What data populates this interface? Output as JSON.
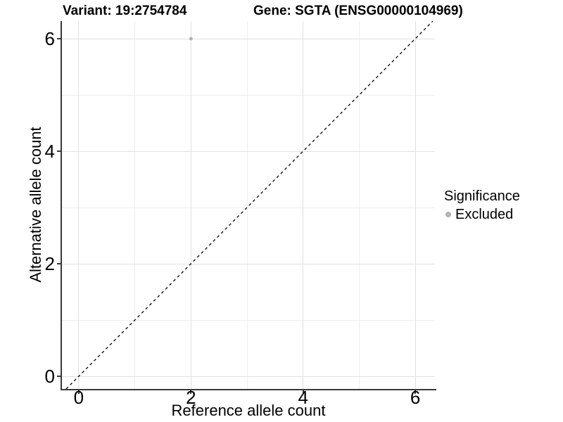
{
  "chart_data": {
    "type": "scatter",
    "title_left": "Variant: 19:2754784",
    "title_right": "Gene: SGTA (ENSG00000104969)",
    "xlabel": "Reference allele count",
    "ylabel": "Alternative allele count",
    "xlim": [
      -0.3,
      6.35
    ],
    "ylim": [
      -0.225,
      6.3125
    ],
    "x_ticks": [
      0,
      2,
      4,
      6
    ],
    "y_ticks": [
      0,
      2,
      4,
      6
    ],
    "x_minor_gridlines": [
      1,
      3,
      5
    ],
    "y_minor_gridlines": [
      1,
      3,
      5
    ],
    "grid": "on",
    "reference_line": {
      "kind": "identity",
      "style": "dashed",
      "color": "#000000"
    },
    "series": [
      {
        "name": "Excluded",
        "color": "#b3b3b3",
        "point_radius": 2.5,
        "points": [
          {
            "x": 2,
            "y": 6
          }
        ]
      }
    ],
    "legend": {
      "position": "right",
      "title": "Significance",
      "entries": [
        {
          "label": "Excluded",
          "color": "#b3b3b3"
        }
      ]
    }
  },
  "colors": {
    "background": "#ffffff",
    "axis_line": "#383838",
    "grid_major": "#e0e0e0",
    "grid_minor": "#eeeeee",
    "text": "#000000"
  }
}
